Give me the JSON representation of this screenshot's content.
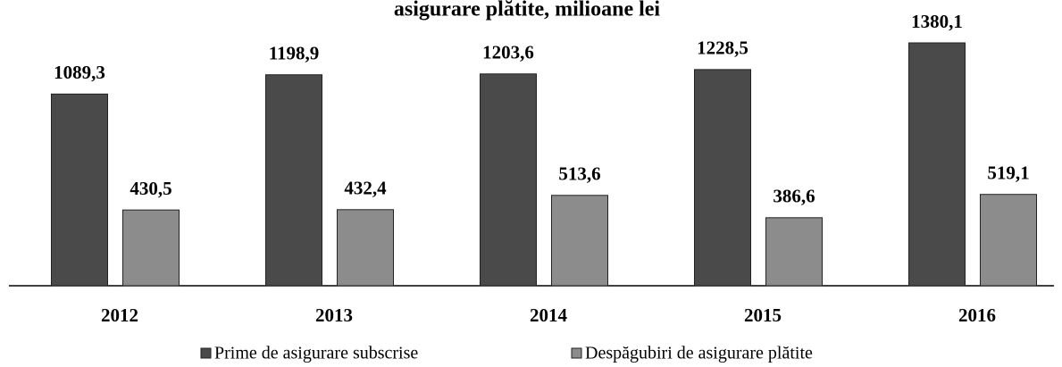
{
  "chart_data": {
    "type": "bar",
    "title": "asigurare plătite, milioane lei",
    "categories": [
      "2012",
      "2013",
      "2014",
      "2015",
      "2016"
    ],
    "series": [
      {
        "name": "Prime de asigurare subscrise",
        "color": "#4a4a4a",
        "values": [
          1089.3,
          1198.9,
          1203.6,
          1228.5,
          1380.1
        ],
        "value_labels": [
          "1089,3",
          "1198,9",
          "1203,6",
          "1228,5",
          "1380,1"
        ]
      },
      {
        "name": "Despăgubiri de asigurare plătite",
        "color": "#8c8c8c",
        "values": [
          430.5,
          432.4,
          513.6,
          386.6,
          519.1
        ],
        "value_labels": [
          "430,5",
          "432,4",
          "513,6",
          "386,6",
          "519,1"
        ]
      }
    ]
  }
}
